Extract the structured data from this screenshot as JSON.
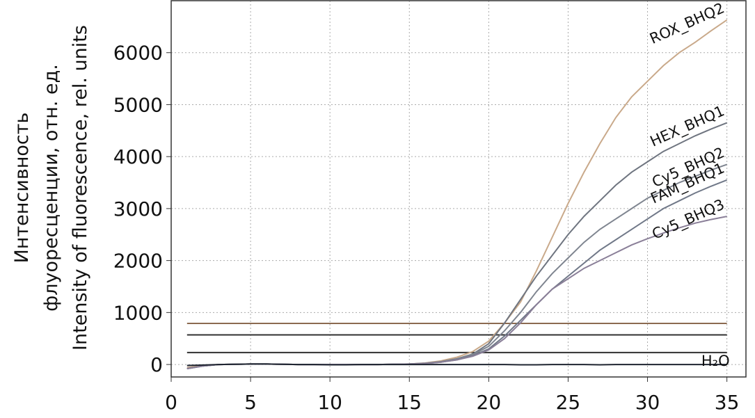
{
  "chart_data": {
    "type": "line",
    "ylabel": [
      "Интенсивность",
      "флуоресценции, отн. ед.",
      "Intensity of fluorescence, rel. units"
    ],
    "x": [
      1,
      2,
      3,
      4,
      5,
      6,
      7,
      8,
      9,
      10,
      11,
      12,
      13,
      14,
      15,
      16,
      17,
      18,
      19,
      20,
      21,
      22,
      23,
      24,
      25,
      26,
      27,
      28,
      29,
      30,
      31,
      32,
      33,
      34,
      35
    ],
    "series": [
      {
        "name": "ROX_BHQ2",
        "color": "#c9a98a",
        "values": [
          -60,
          -20,
          0,
          5,
          10,
          10,
          5,
          0,
          0,
          0,
          0,
          0,
          0,
          5,
          10,
          30,
          70,
          140,
          250,
          450,
          800,
          1200,
          1800,
          2450,
          3100,
          3700,
          4250,
          4750,
          5150,
          5450,
          5750,
          6000,
          6200,
          6420,
          6630
        ]
      },
      {
        "name": "HEX_BHQ1",
        "color": "#6f7580",
        "values": [
          -80,
          -30,
          0,
          5,
          10,
          10,
          5,
          0,
          0,
          0,
          0,
          0,
          0,
          5,
          10,
          25,
          55,
          110,
          200,
          400,
          800,
          1250,
          1700,
          2100,
          2500,
          2850,
          3150,
          3450,
          3700,
          3900,
          4100,
          4250,
          4400,
          4530,
          4650
        ]
      },
      {
        "name": "Cy5_BHQ2",
        "color": "#7f8590",
        "values": [
          -80,
          -30,
          0,
          5,
          10,
          10,
          5,
          0,
          0,
          0,
          0,
          0,
          0,
          5,
          10,
          25,
          50,
          100,
          190,
          350,
          650,
          1000,
          1400,
          1750,
          2050,
          2350,
          2600,
          2800,
          3000,
          3200,
          3350,
          3500,
          3620,
          3740,
          3850
        ]
      },
      {
        "name": "FAM_BHQ1",
        "color": "#707888",
        "values": [
          -80,
          -30,
          0,
          5,
          10,
          10,
          5,
          0,
          0,
          0,
          0,
          0,
          0,
          5,
          10,
          20,
          45,
          90,
          170,
          300,
          550,
          850,
          1150,
          1450,
          1700,
          1950,
          2200,
          2400,
          2600,
          2800,
          3000,
          3150,
          3300,
          3430,
          3550
        ]
      },
      {
        "name": "Cy5_BHQ3",
        "color": "#8a7f98",
        "values": [
          -80,
          -30,
          0,
          5,
          10,
          10,
          5,
          0,
          0,
          0,
          0,
          0,
          0,
          5,
          10,
          20,
          45,
          90,
          160,
          280,
          500,
          800,
          1150,
          1450,
          1650,
          1850,
          2000,
          2150,
          2300,
          2420,
          2530,
          2630,
          2720,
          2790,
          2850
        ]
      },
      {
        "name": "H₂O",
        "color": "#1e2430",
        "values": [
          -20,
          -10,
          0,
          5,
          10,
          10,
          5,
          0,
          0,
          -5,
          -5,
          0,
          0,
          0,
          0,
          0,
          0,
          0,
          0,
          0,
          0,
          -5,
          -5,
          0,
          0,
          0,
          -5,
          0,
          0,
          0,
          0,
          0,
          0,
          0,
          0
        ]
      }
    ],
    "thresholds": [
      {
        "value": 790,
        "color": "#8b6a50"
      },
      {
        "value": 570,
        "color": "#303030"
      },
      {
        "value": 230,
        "color": "#303030"
      }
    ],
    "xlim": [
      0,
      36.2
    ],
    "ylim": [
      -240,
      7000
    ],
    "xticks": [
      0,
      5,
      10,
      15,
      20,
      25,
      30,
      35
    ],
    "yticks": [
      0,
      1000,
      2000,
      3000,
      4000,
      5000,
      6000
    ],
    "grid": true
  }
}
